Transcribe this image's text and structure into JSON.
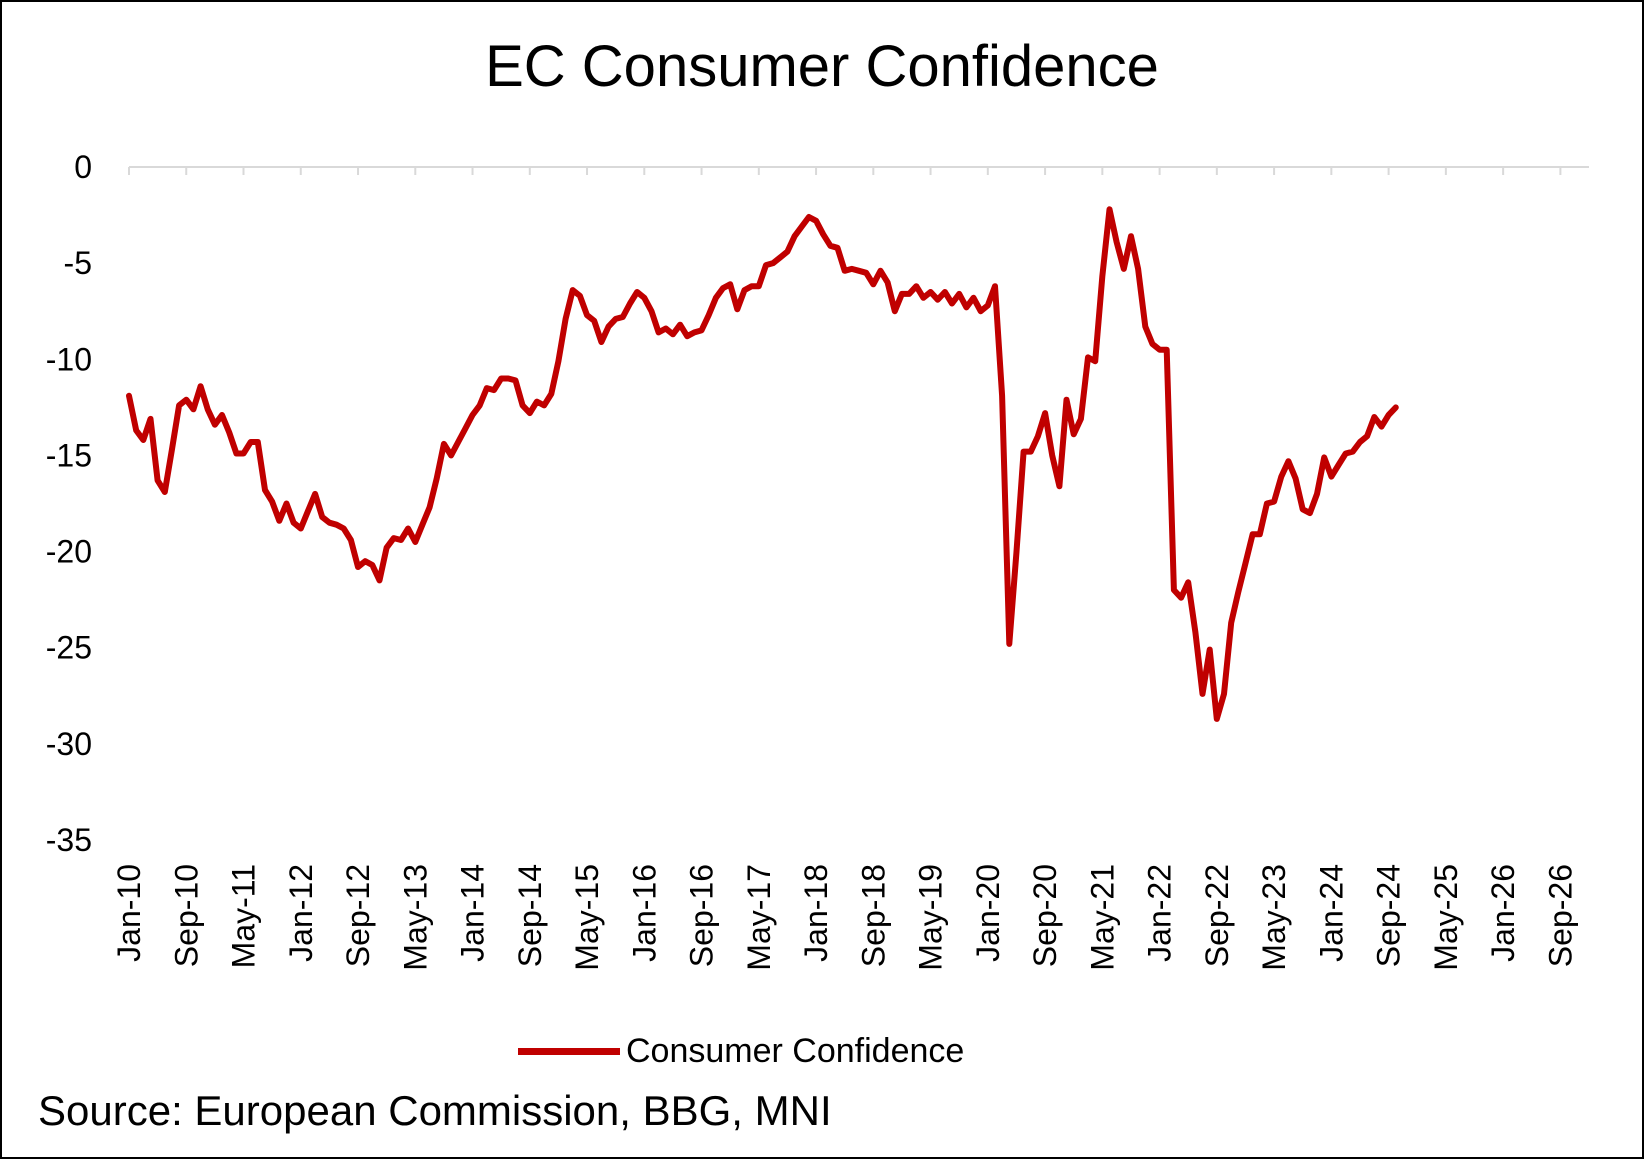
{
  "chart_data": {
    "type": "line",
    "title": "EC Consumer Confidence",
    "xlabel": "",
    "ylabel": "",
    "ylim": [
      -35,
      0
    ],
    "yticks": [
      0,
      -5,
      -10,
      -15,
      -20,
      -25,
      -30,
      -35
    ],
    "x_start": "Jan-10",
    "x_end_axis": "Dec-26",
    "x_tick_labels": [
      "Jan-10",
      "Sep-10",
      "May-11",
      "Jan-12",
      "Sep-12",
      "May-13",
      "Jan-14",
      "Sep-14",
      "May-15",
      "Jan-16",
      "Sep-16",
      "May-17",
      "Jan-18",
      "Sep-18",
      "May-19",
      "Jan-20",
      "Sep-20",
      "May-21",
      "Jan-22",
      "Sep-22",
      "May-23",
      "Jan-24",
      "Sep-24",
      "May-25",
      "Jan-26",
      "Sep-26"
    ],
    "grid": false,
    "legend_position": "bottom",
    "series": [
      {
        "name": "Consumer Confidence",
        "color": "#C00000",
        "start": "Jan-10",
        "frequency": "monthly",
        "values": [
          -11.9,
          -13.7,
          -14.2,
          -13.1,
          -16.3,
          -16.9,
          -14.7,
          -12.4,
          -12.1,
          -12.6,
          -11.4,
          -12.6,
          -13.4,
          -12.9,
          -13.8,
          -14.9,
          -14.9,
          -14.3,
          -14.3,
          -16.8,
          -17.4,
          -18.4,
          -17.5,
          -18.5,
          -18.8,
          -17.9,
          -17.0,
          -18.2,
          -18.5,
          -18.6,
          -18.8,
          -19.4,
          -20.8,
          -20.5,
          -20.7,
          -21.5,
          -19.8,
          -19.3,
          -19.4,
          -18.8,
          -19.5,
          -18.6,
          -17.7,
          -16.2,
          -14.4,
          -15.0,
          -14.3,
          -13.6,
          -12.9,
          -12.4,
          -11.5,
          -11.6,
          -11.0,
          -11.0,
          -11.1,
          -12.4,
          -12.8,
          -12.2,
          -12.4,
          -11.8,
          -10.1,
          -7.9,
          -6.4,
          -6.7,
          -7.7,
          -8.0,
          -9.1,
          -8.3,
          -7.9,
          -7.8,
          -7.1,
          -6.5,
          -6.8,
          -7.5,
          -8.6,
          -8.4,
          -8.7,
          -8.2,
          -8.8,
          -8.6,
          -8.5,
          -7.7,
          -6.8,
          -6.3,
          -6.1,
          -7.4,
          -6.4,
          -6.2,
          -6.2,
          -5.1,
          -5.0,
          -4.7,
          -4.4,
          -3.6,
          -3.1,
          -2.6,
          -2.8,
          -3.5,
          -4.1,
          -4.2,
          -5.4,
          -5.3,
          -5.4,
          -5.5,
          -6.1,
          -5.4,
          -6.0,
          -7.5,
          -6.6,
          -6.6,
          -6.2,
          -6.8,
          -6.5,
          -6.9,
          -6.5,
          -7.1,
          -6.6,
          -7.3,
          -6.8,
          -7.5,
          -7.2,
          -6.2,
          -11.9,
          -24.8,
          -20.0,
          -14.8,
          -14.8,
          -14.0,
          -12.8,
          -15.0,
          -16.6,
          -12.1,
          -13.9,
          -13.1,
          -9.9,
          -10.1,
          -5.7,
          -2.2,
          -3.9,
          -5.3,
          -3.6,
          -5.3,
          -8.3,
          -9.2,
          -9.5,
          -9.5,
          -22.0,
          -22.4,
          -21.6,
          -24.2,
          -27.4,
          -25.1,
          -28.7,
          -27.4,
          -23.7,
          -22.1,
          -20.6,
          -19.1,
          -19.1,
          -17.5,
          -17.4,
          -16.1,
          -15.3,
          -16.2,
          -17.8,
          -18.0,
          -17.0,
          -15.1,
          -16.1,
          -15.5,
          -14.9,
          -14.8,
          -14.3,
          -14.0,
          -13.0,
          -13.5,
          -12.9,
          -12.5
        ]
      }
    ]
  },
  "legend": {
    "label": "Consumer Confidence"
  },
  "source": "Source: European Commission, BBG, MNI"
}
